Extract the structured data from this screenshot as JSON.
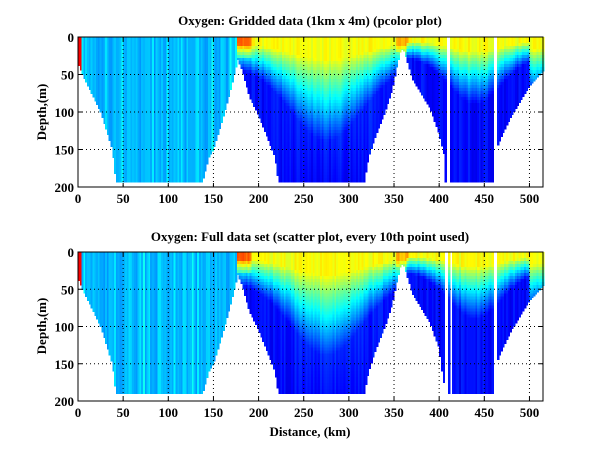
{
  "chart_data": [
    {
      "type": "heatmap",
      "title": "Oxygen: Gridded data (1km x 4m) (pcolor plot)",
      "xlabel": "",
      "ylabel": "Depth,(m)",
      "xlim": [
        0,
        515
      ],
      "ylim": [
        200,
        0
      ],
      "xticks": [
        0,
        50,
        100,
        150,
        200,
        250,
        300,
        350,
        400,
        450,
        500
      ],
      "yticks": [
        0,
        50,
        100,
        150,
        200
      ],
      "grid": true,
      "colormap": "jet",
      "bottom_profile_km_m": [
        [
          0,
          35
        ],
        [
          5,
          50
        ],
        [
          15,
          75
        ],
        [
          25,
          100
        ],
        [
          33,
          130
        ],
        [
          38,
          150
        ],
        [
          42,
          193
        ],
        [
          138,
          193
        ],
        [
          145,
          160
        ],
        [
          150,
          150
        ],
        [
          160,
          110
        ],
        [
          168,
          75
        ],
        [
          172,
          55
        ],
        [
          177,
          30
        ],
        [
          182,
          45
        ],
        [
          190,
          80
        ],
        [
          200,
          105
        ],
        [
          210,
          135
        ],
        [
          218,
          160
        ],
        [
          222,
          193
        ],
        [
          317,
          193
        ],
        [
          322,
          160
        ],
        [
          330,
          130
        ],
        [
          340,
          100
        ],
        [
          348,
          70
        ],
        [
          353,
          40
        ],
        [
          357,
          20
        ],
        [
          360,
          15
        ],
        [
          364,
          30
        ],
        [
          370,
          55
        ],
        [
          380,
          75
        ],
        [
          390,
          95
        ],
        [
          400,
          130
        ],
        [
          406,
          160
        ],
        [
          407,
          193
        ],
        [
          460,
          193
        ],
        [
          463,
          150
        ],
        [
          470,
          130
        ],
        [
          480,
          105
        ],
        [
          490,
          85
        ],
        [
          500,
          65
        ],
        [
          508,
          55
        ],
        [
          515,
          45
        ]
      ],
      "gaps_km": [
        [
          409,
          412
        ],
        [
          461,
          463
        ]
      ]
    },
    {
      "type": "heatmap",
      "title": "Oxygen: Full data set (scatter plot, every 10th point used)",
      "xlabel": "Distance, (km)",
      "ylabel": "Depth,(m)",
      "xlim": [
        0,
        515
      ],
      "ylim": [
        200,
        0
      ],
      "xticks": [
        0,
        50,
        100,
        150,
        200,
        250,
        300,
        350,
        400,
        450,
        500
      ],
      "yticks": [
        0,
        50,
        100,
        150,
        200
      ],
      "grid": true,
      "colormap": "jet",
      "bottom_profile_km_m": [
        [
          0,
          35
        ],
        [
          5,
          50
        ],
        [
          15,
          75
        ],
        [
          25,
          100
        ],
        [
          33,
          130
        ],
        [
          38,
          150
        ],
        [
          42,
          190
        ],
        [
          138,
          190
        ],
        [
          145,
          160
        ],
        [
          150,
          150
        ],
        [
          160,
          110
        ],
        [
          168,
          75
        ],
        [
          172,
          55
        ],
        [
          177,
          30
        ],
        [
          182,
          45
        ],
        [
          190,
          80
        ],
        [
          200,
          105
        ],
        [
          210,
          135
        ],
        [
          218,
          160
        ],
        [
          222,
          190
        ],
        [
          317,
          190
        ],
        [
          322,
          160
        ],
        [
          330,
          130
        ],
        [
          340,
          100
        ],
        [
          348,
          70
        ],
        [
          353,
          40
        ],
        [
          357,
          20
        ],
        [
          360,
          15
        ],
        [
          364,
          30
        ],
        [
          370,
          55
        ],
        [
          380,
          75
        ],
        [
          390,
          95
        ],
        [
          400,
          130
        ],
        [
          404,
          170
        ],
        [
          408,
          190
        ],
        [
          460,
          190
        ],
        [
          463,
          150
        ],
        [
          470,
          130
        ],
        [
          480,
          105
        ],
        [
          490,
          85
        ],
        [
          500,
          65
        ],
        [
          508,
          55
        ],
        [
          515,
          45
        ]
      ],
      "gaps_km": [
        [
          406,
          409
        ],
        [
          412,
          414
        ],
        [
          461,
          463
        ]
      ]
    }
  ]
}
